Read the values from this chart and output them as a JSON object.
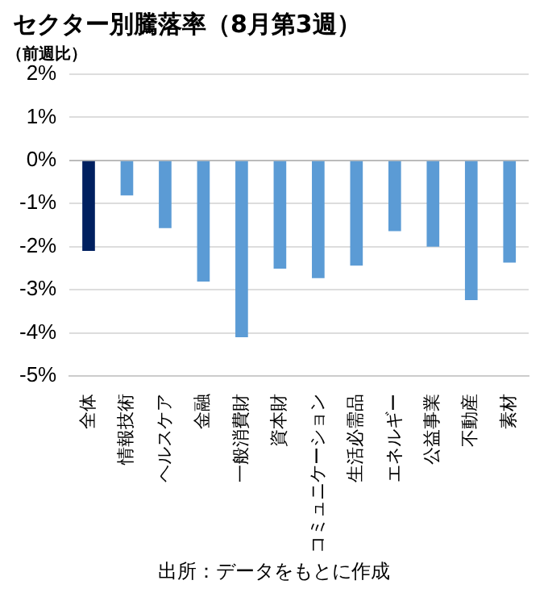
{
  "chart_data": {
    "type": "bar",
    "title": "セクター別騰落率（8月第3週）",
    "ylabel": "（前週比）",
    "categories": [
      "全体",
      "情報技術",
      "ヘルスケア",
      "金融",
      "一般消費財",
      "資本財",
      "コミュニケーション",
      "生活必需品",
      "エネルギー",
      "公益事業",
      "不動産",
      "素材"
    ],
    "values": [
      -2.1,
      -0.81,
      -1.57,
      -2.81,
      -4.1,
      -2.51,
      -2.73,
      -2.44,
      -1.64,
      -2.0,
      -3.24,
      -2.37
    ],
    "colors": [
      "#002060",
      "#5b9bd5",
      "#5b9bd5",
      "#5b9bd5",
      "#5b9bd5",
      "#5b9bd5",
      "#5b9bd5",
      "#5b9bd5",
      "#5b9bd5",
      "#5b9bd5",
      "#5b9bd5",
      "#5b9bd5"
    ],
    "ylim": [
      -5,
      2
    ],
    "yticks": [
      {
        "value": -5,
        "label": "-5%"
      },
      {
        "value": -4,
        "label": "-4%"
      },
      {
        "value": -3,
        "label": "-3%"
      },
      {
        "value": -2,
        "label": "-2%"
      },
      {
        "value": -1,
        "label": "-1%"
      },
      {
        "value": 0,
        "label": "0%"
      },
      {
        "value": 1,
        "label": "1%"
      },
      {
        "value": 2,
        "label": "2%"
      }
    ],
    "grid": "y",
    "legend": false,
    "annotations": [
      "出所：データをもとに作成"
    ]
  }
}
